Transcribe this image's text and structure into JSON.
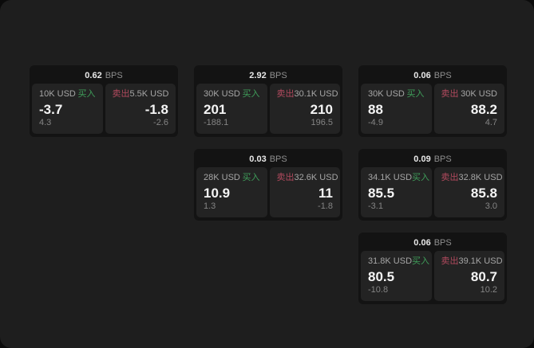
{
  "labels": {
    "bps_unit": "BPS",
    "buy": "买入",
    "sell": "卖出"
  },
  "theme": {
    "window_bg": "#1e1e1e",
    "outer_bg": "#0b0b0b",
    "card_bg": "#131313",
    "panel_bg": "#232323",
    "buy_color": "#3f9e5a",
    "sell_color": "#b24a5e"
  },
  "cards": [
    {
      "bps": "0.62",
      "buy": {
        "size": "10K USD",
        "value": "-3.7",
        "delta": "4.3"
      },
      "sell": {
        "size": "5.5K USD",
        "value": "-1.8",
        "delta": "-2.6"
      }
    },
    {
      "bps": "2.92",
      "buy": {
        "size": "30K USD",
        "value": "201",
        "delta": "-188.1"
      },
      "sell": {
        "size": "30.1K USD",
        "value": "210",
        "delta": "196.5"
      }
    },
    {
      "bps": "0.06",
      "buy": {
        "size": "30K USD",
        "value": "88",
        "delta": "-4.9"
      },
      "sell": {
        "size": "30K USD",
        "value": "88.2",
        "delta": "4.7"
      }
    },
    {
      "bps": "0.03",
      "buy": {
        "size": "28K USD",
        "value": "10.9",
        "delta": "1.3"
      },
      "sell": {
        "size": "32.6K USD",
        "value": "11",
        "delta": "-1.8"
      }
    },
    {
      "bps": "0.09",
      "buy": {
        "size": "34.1K USD",
        "value": "85.5",
        "delta": "-3.1"
      },
      "sell": {
        "size": "32.8K USD",
        "value": "85.8",
        "delta": "3.0"
      }
    },
    {
      "bps": "0.06",
      "buy": {
        "size": "31.8K USD",
        "value": "80.5",
        "delta": "-10.8"
      },
      "sell": {
        "size": "39.1K USD",
        "value": "80.7",
        "delta": "10.2"
      }
    }
  ]
}
